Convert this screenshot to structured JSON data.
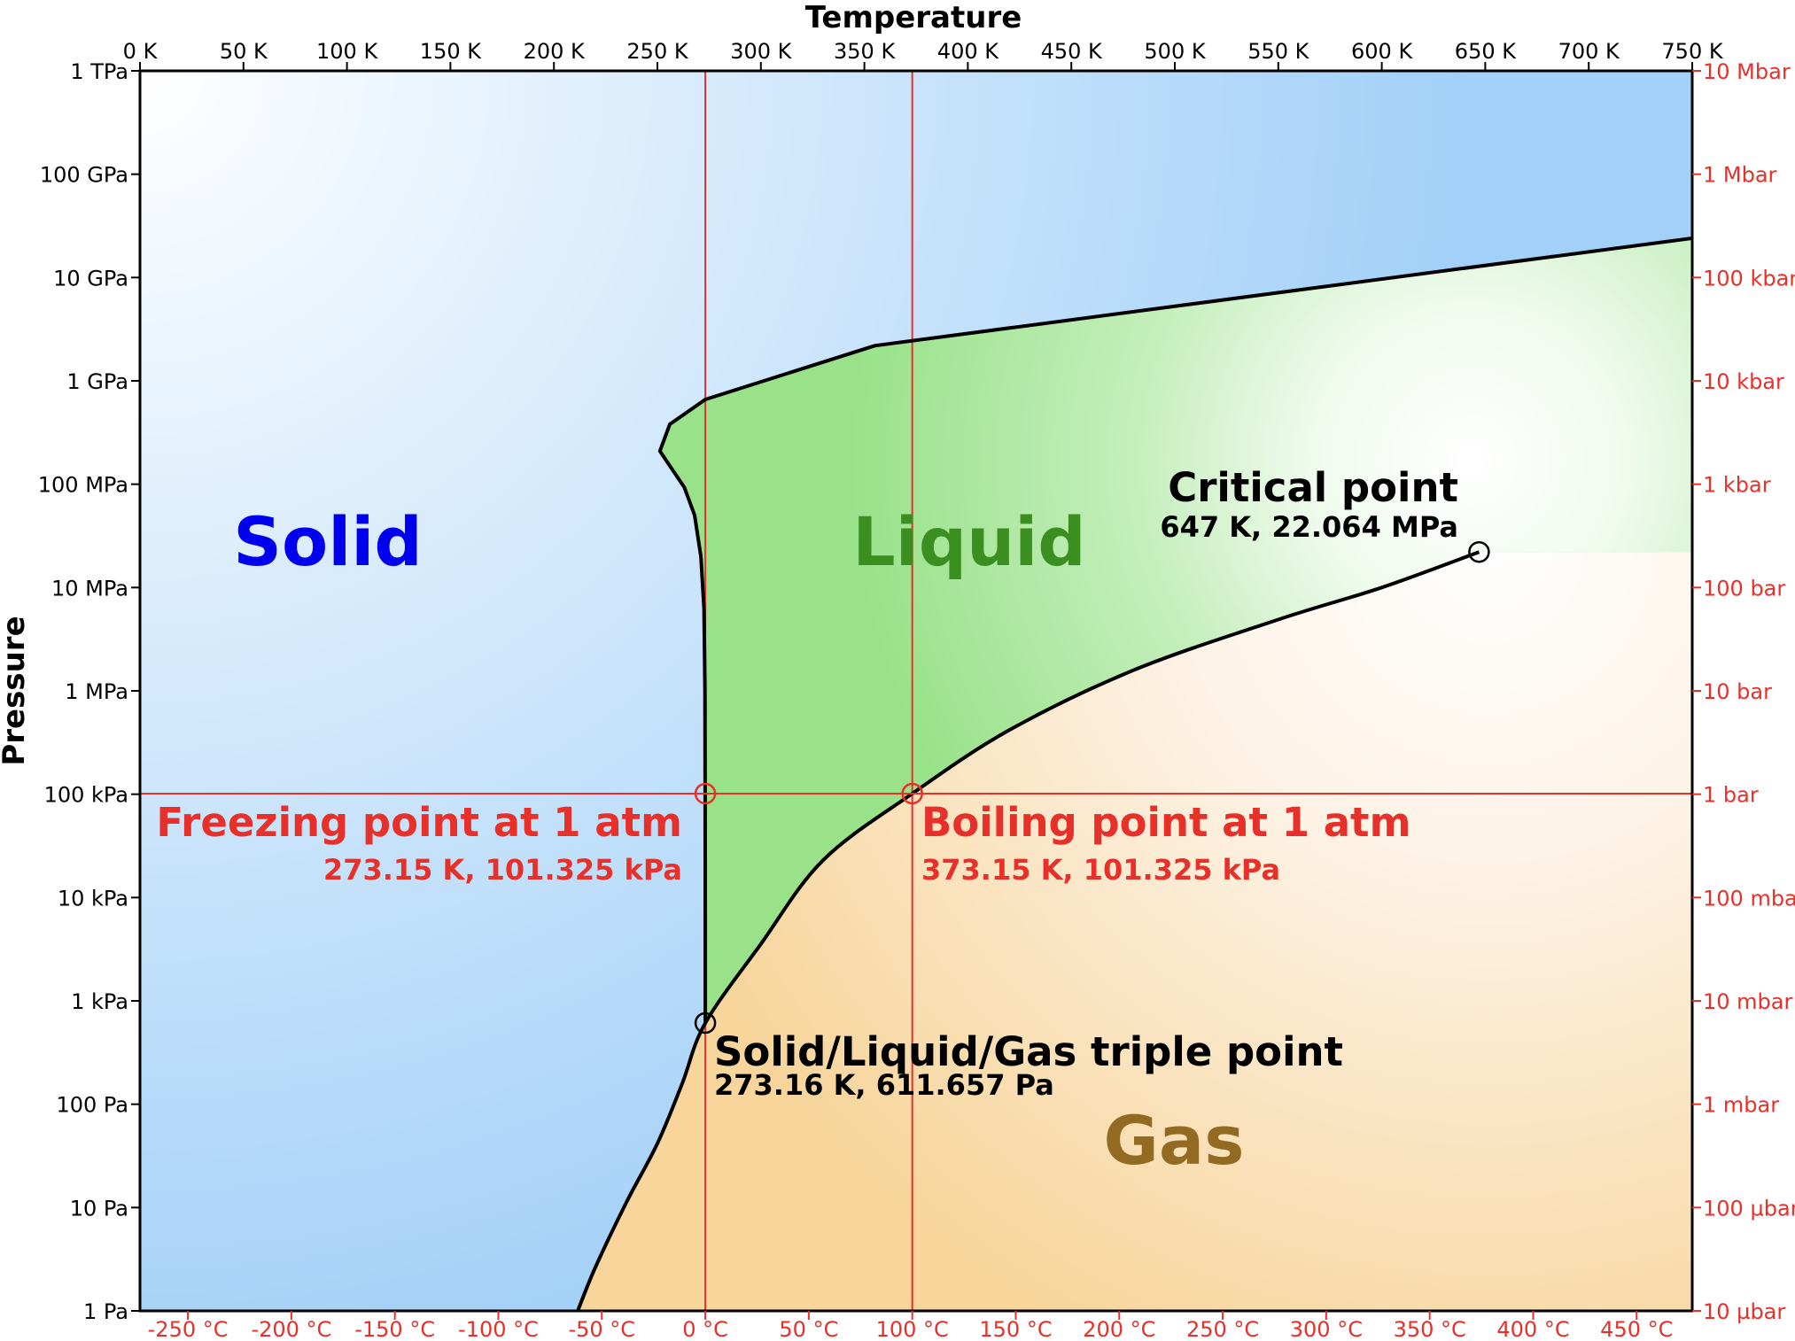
{
  "colors": {
    "solid_text": "#0000ee",
    "liquid_text": "#3b8f20",
    "gas_text": "#936a22",
    "liquid_fill": "#99e28a",
    "solid_fill": "#a2d0f8",
    "gas_fill": "#f7d59b",
    "red": "#e8302a",
    "black": "#000000"
  },
  "chart_data": {
    "type": "phase-diagram",
    "xlabel": "Temperature",
    "ylabel": "Pressure",
    "xlim_K": [
      0,
      750
    ],
    "ylim_log10_Pa": [
      0,
      12
    ],
    "x_top_ticks": [
      {
        "v": 0,
        "label": "0 K"
      },
      {
        "v": 50,
        "label": "50 K"
      },
      {
        "v": 100,
        "label": "100 K"
      },
      {
        "v": 150,
        "label": "150 K"
      },
      {
        "v": 200,
        "label": "200 K"
      },
      {
        "v": 250,
        "label": "250 K"
      },
      {
        "v": 300,
        "label": "300 K"
      },
      {
        "v": 350,
        "label": "350 K"
      },
      {
        "v": 400,
        "label": "400 K"
      },
      {
        "v": 450,
        "label": "450 K"
      },
      {
        "v": 500,
        "label": "500 K"
      },
      {
        "v": 550,
        "label": "550 K"
      },
      {
        "v": 600,
        "label": "600 K"
      },
      {
        "v": 650,
        "label": "650 K"
      },
      {
        "v": 700,
        "label": "700 K"
      },
      {
        "v": 750,
        "label": "750 K"
      }
    ],
    "x_bottom_ticks": [
      {
        "v": -250,
        "label": "-250 °C"
      },
      {
        "v": -200,
        "label": "-200 °C"
      },
      {
        "v": -150,
        "label": "-150 °C"
      },
      {
        "v": -100,
        "label": "-100 °C"
      },
      {
        "v": -50,
        "label": "-50 °C"
      },
      {
        "v": 0,
        "label": "0 °C"
      },
      {
        "v": 50,
        "label": "50 °C"
      },
      {
        "v": 100,
        "label": "100 °C"
      },
      {
        "v": 150,
        "label": "150 °C"
      },
      {
        "v": 200,
        "label": "200 °C"
      },
      {
        "v": 250,
        "label": "250 °C"
      },
      {
        "v": 300,
        "label": "300 °C"
      },
      {
        "v": 350,
        "label": "350 °C"
      },
      {
        "v": 400,
        "label": "400 °C"
      },
      {
        "v": 450,
        "label": "450 °C"
      }
    ],
    "y_left_ticks": [
      {
        "v": 0,
        "label": "1 Pa"
      },
      {
        "v": 1,
        "label": "10 Pa"
      },
      {
        "v": 2,
        "label": "100 Pa"
      },
      {
        "v": 3,
        "label": "1 kPa"
      },
      {
        "v": 4,
        "label": "10 kPa"
      },
      {
        "v": 5,
        "label": "100 kPa"
      },
      {
        "v": 6,
        "label": "1 MPa"
      },
      {
        "v": 7,
        "label": "10 MPa"
      },
      {
        "v": 8,
        "label": "100 MPa"
      },
      {
        "v": 9,
        "label": "1 GPa"
      },
      {
        "v": 10,
        "label": "10 GPa"
      },
      {
        "v": 11,
        "label": "100 GPa"
      },
      {
        "v": 12,
        "label": "1 TPa"
      }
    ],
    "y_right_ticks": [
      {
        "v": 0,
        "label": "10 µbar"
      },
      {
        "v": 1,
        "label": "100 µbar"
      },
      {
        "v": 2,
        "label": "1 mbar"
      },
      {
        "v": 3,
        "label": "10 mbar"
      },
      {
        "v": 4,
        "label": "100 mbar"
      },
      {
        "v": 5,
        "label": "1 bar"
      },
      {
        "v": 6,
        "label": "10 bar"
      },
      {
        "v": 7,
        "label": "100 bar"
      },
      {
        "v": 8,
        "label": "1 kbar"
      },
      {
        "v": 9,
        "label": "10 kbar"
      },
      {
        "v": 10,
        "label": "100 kbar"
      },
      {
        "v": 11,
        "label": "1 Mbar"
      },
      {
        "v": 12,
        "label": "10 Mbar"
      }
    ],
    "regions": {
      "solid": "Solid",
      "liquid": "Liquid",
      "gas": "Gas"
    },
    "melting_curve": [
      [
        273.16,
        2.786
      ],
      [
        273.12,
        4.5
      ],
      [
        273.0,
        6.0
      ],
      [
        272.5,
        6.8
      ],
      [
        271.0,
        7.3
      ],
      [
        268.0,
        7.7
      ],
      [
        263.0,
        7.97
      ],
      [
        251.2,
        8.32
      ],
      [
        256.0,
        8.58
      ],
      [
        273.15,
        8.82
      ],
      [
        355.0,
        9.34
      ],
      [
        750.0,
        10.38
      ]
    ],
    "vaporization_curve": [
      [
        211.5,
        0.0
      ],
      [
        220.0,
        0.42
      ],
      [
        235.0,
        1.05
      ],
      [
        250.0,
        1.62
      ],
      [
        262.0,
        2.2
      ],
      [
        273.16,
        2.786
      ],
      [
        300.0,
        3.55
      ],
      [
        330.0,
        4.36
      ],
      [
        373.15,
        5.006
      ],
      [
        420.0,
        5.62
      ],
      [
        480.0,
        6.2
      ],
      [
        550.0,
        6.69
      ],
      [
        600.0,
        7.0
      ],
      [
        647.0,
        7.344
      ]
    ],
    "reference_lines": {
      "freezing_K": 273.15,
      "boiling_K": 373.15,
      "one_atm_log10_Pa": 5.006
    },
    "points": [
      {
        "name": "triple",
        "T": 273.16,
        "logP": 2.786,
        "color": "black"
      },
      {
        "name": "critical",
        "T": 647.0,
        "logP": 7.344,
        "color": "black"
      },
      {
        "name": "freezing",
        "T": 273.15,
        "logP": 5.006,
        "color": "red"
      },
      {
        "name": "boiling",
        "T": 373.15,
        "logP": 5.006,
        "color": "red"
      }
    ],
    "annotations": {
      "critical_title": "Critical point",
      "critical_sub": "647 K, 22.064 MPa",
      "freezing_title": "Freezing point at 1 atm",
      "freezing_sub": "273.15 K, 101.325 kPa",
      "boiling_title": "Boiling point at 1 atm",
      "boiling_sub": "373.15 K, 101.325 kPa",
      "triple_title": "Solid/Liquid/Gas triple point",
      "triple_sub": "273.16 K, 611.657 Pa"
    }
  }
}
